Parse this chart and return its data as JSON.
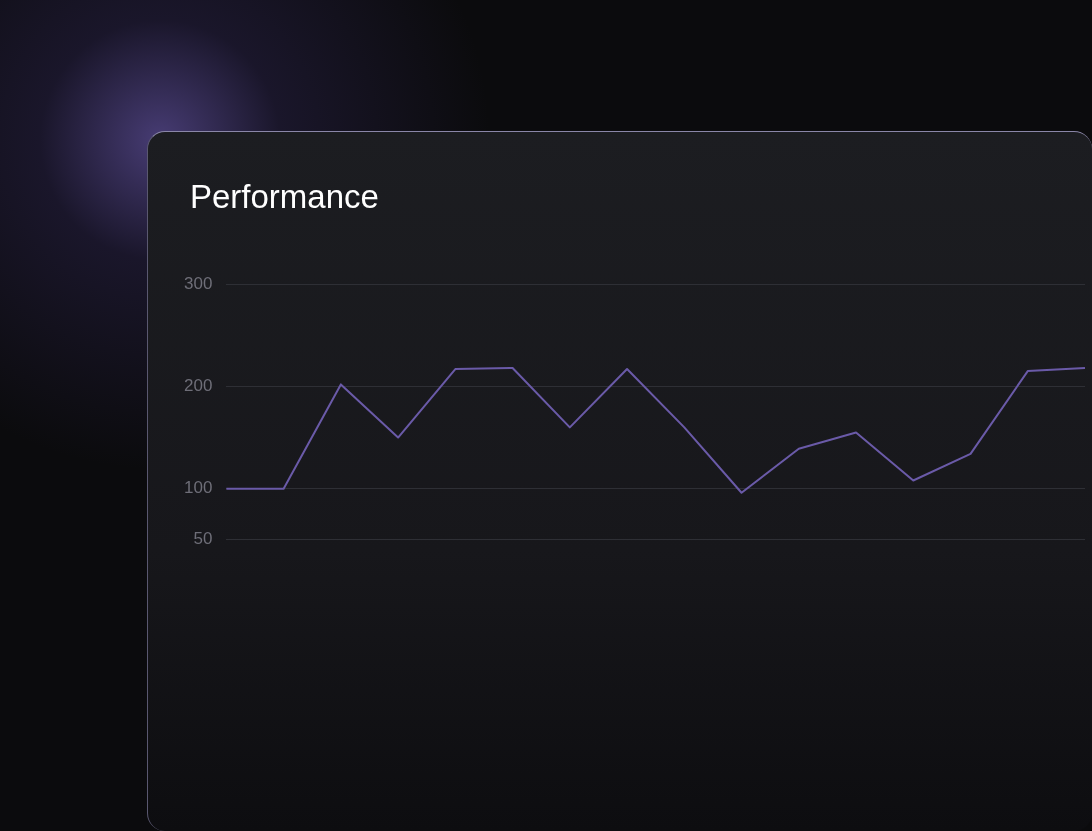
{
  "chart_data": {
    "type": "line",
    "title": "Performance",
    "categories": [
      null,
      null,
      null,
      null,
      null,
      null,
      null,
      null,
      null,
      null,
      null,
      null,
      null,
      null,
      null,
      null
    ],
    "series": [
      {
        "color": "#6a5aa8",
        "values": [
          100,
          100,
          202,
          150,
          217,
          218,
          160,
          217,
          160,
          96,
          139,
          155,
          108,
          134,
          215,
          218
        ]
      }
    ],
    "ylim": [
      50,
      300
    ],
    "yticks": [
      50,
      100,
      200,
      300
    ],
    "grid": "y",
    "legend": false,
    "marker": "none",
    "line_style": "solid",
    "tick_labels": "y"
  }
}
